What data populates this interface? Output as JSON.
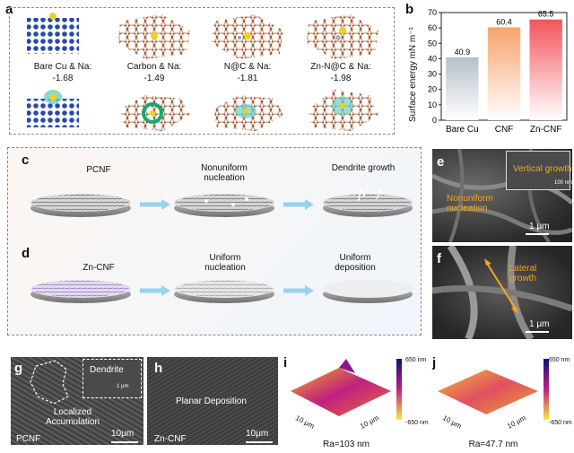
{
  "panels": {
    "a": {
      "letter": "a",
      "items": [
        {
          "label": "Bare Cu & Na:",
          "value": "-1.68"
        },
        {
          "label": "Carbon & Na:",
          "value": "-1.49"
        },
        {
          "label": "N@C & Na:",
          "value": "-1.81"
        },
        {
          "label": "Zn-N@C & Na:",
          "value": "-1.98"
        }
      ]
    },
    "b": {
      "letter": "b"
    },
    "c": {
      "letter": "c",
      "stages": [
        "PCNF",
        "Nonuniform nucleation",
        "Dendrite growth"
      ]
    },
    "d": {
      "letter": "d",
      "stages": [
        "Zn-CNF",
        "Uniform nucleation",
        "Uniform deposition"
      ]
    },
    "e": {
      "letter": "e",
      "labels": [
        "Vertical growth",
        "Nonuniform nucleation"
      ],
      "inset_scale": "100 nm",
      "scale": "1 μm"
    },
    "f": {
      "letter": "f",
      "labels": [
        "Lateral growth"
      ],
      "scale": "1 μm"
    },
    "g": {
      "letter": "g",
      "labels": [
        "Dendrite",
        "Localized Accumulation",
        "PCNF"
      ],
      "inset_scale": "1 μm",
      "scale": "10μm"
    },
    "h": {
      "letter": "h",
      "labels": [
        "Planar Deposition",
        "Zn-CNF"
      ],
      "scale": "10μm"
    },
    "i": {
      "letter": "i",
      "axis_x": "10 μm",
      "axis_y": "10 μm",
      "cbar_top": "650 nm",
      "cbar_bottom": "-650 nm",
      "ra": "Ra=103 nm"
    },
    "j": {
      "letter": "j",
      "axis_x": "10 μm",
      "axis_y": "10 μm",
      "cbar_top": "650 nm",
      "cbar_bottom": "-650 nm",
      "ra": "Ra=47.7 nm"
    }
  },
  "chart_data": {
    "type": "bar",
    "categories": [
      "Bare Cu",
      "CNF",
      "Zn-CNF"
    ],
    "values": [
      40.9,
      60.4,
      65.5
    ],
    "value_labels": [
      "40.9",
      "60.4",
      "65.5"
    ],
    "ylabel": "Surface energy mN m⁻¹",
    "ylim": [
      0,
      70
    ],
    "yticks": [
      0,
      10,
      20,
      30,
      40,
      50,
      60,
      70
    ],
    "colors": [
      "#b6c0c8",
      "#f7a36c",
      "#f2545b"
    ]
  }
}
